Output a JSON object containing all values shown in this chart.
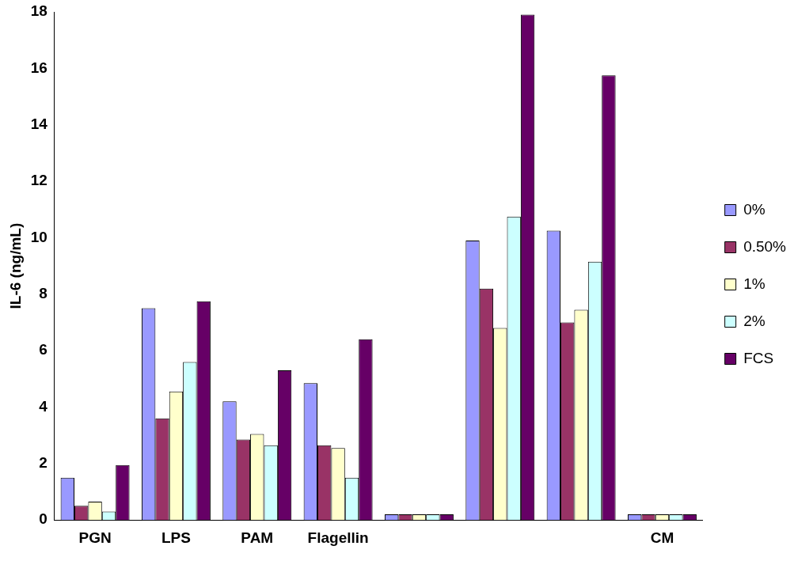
{
  "chart_data": {
    "type": "bar",
    "ylabel": "IL-6 (ng/mL)",
    "categories": [
      "PGN",
      "LPS",
      "PAM",
      "Flagellin",
      null,
      null,
      null,
      "CM"
    ],
    "series": [
      {
        "name": "0%",
        "color": "#9999ff",
        "values": [
          1.5,
          7.5,
          4.2,
          4.85,
          0.2,
          9.9,
          10.25,
          0.2
        ]
      },
      {
        "name": "0.50%",
        "color": "#993366",
        "values": [
          0.5,
          3.6,
          2.85,
          2.65,
          0.2,
          8.2,
          7.0,
          0.2
        ]
      },
      {
        "name": "1%",
        "color": "#ffffcc",
        "values": [
          0.65,
          4.55,
          3.05,
          2.55,
          0.2,
          6.8,
          7.45,
          0.2
        ]
      },
      {
        "name": "2%",
        "color": "#ccffff",
        "values": [
          0.3,
          5.6,
          2.65,
          1.5,
          0.2,
          10.75,
          9.15,
          0.2
        ]
      },
      {
        "name": "FCS",
        "color": "#660066",
        "values": [
          1.95,
          7.75,
          5.3,
          6.4,
          0.2,
          17.9,
          15.75,
          0.2
        ]
      }
    ],
    "ylim": [
      0,
      18
    ],
    "yticks": [
      0,
      2,
      4,
      6,
      8,
      10,
      12,
      14,
      16,
      18
    ],
    "grid": false,
    "legend": "right"
  }
}
